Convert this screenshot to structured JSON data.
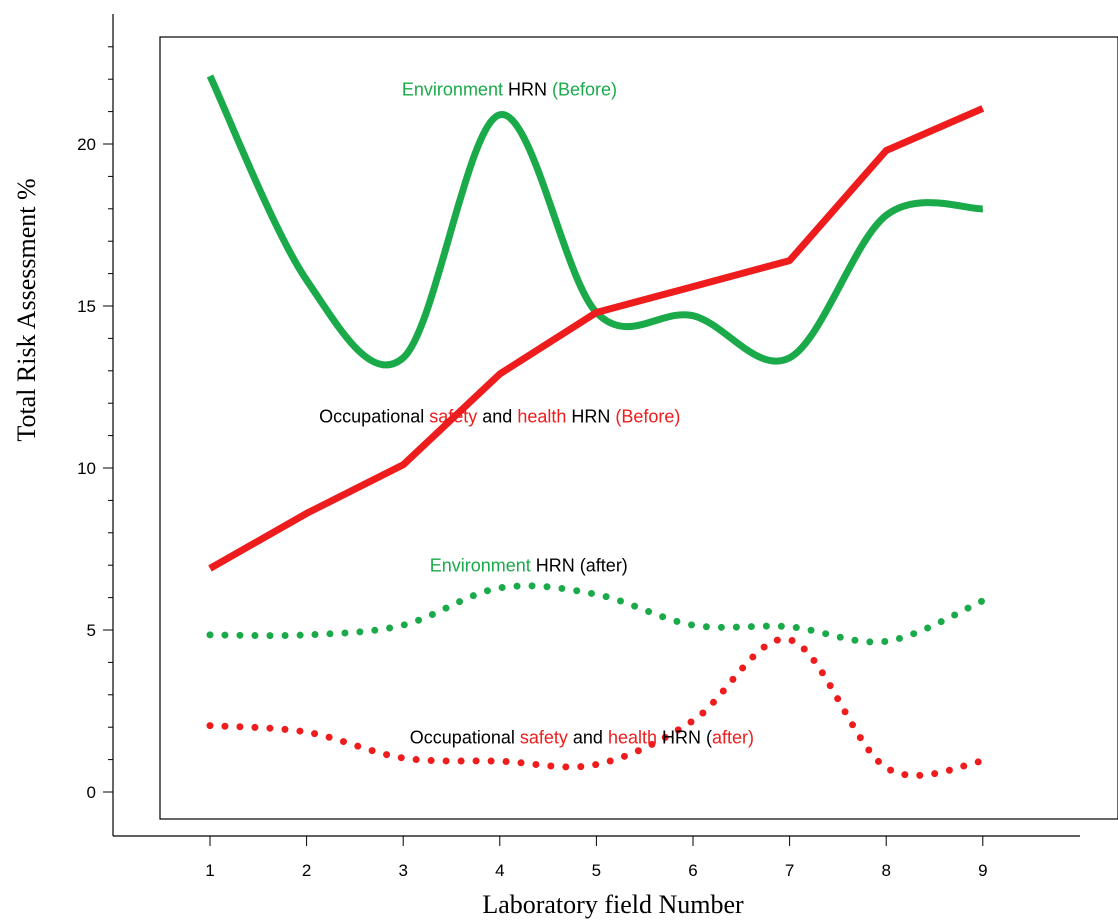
{
  "chart_data": {
    "type": "line",
    "xlabel": "Laboratory field Number",
    "ylabel": "Total Risk Assessment %",
    "x": [
      1,
      2,
      3,
      4,
      5,
      6,
      7,
      8,
      9
    ],
    "xlim": [
      0,
      10
    ],
    "ylim": [
      -1,
      24
    ],
    "yticks": [
      0,
      5,
      10,
      15,
      20
    ],
    "grid": false,
    "legend": "none",
    "series": [
      {
        "key": "env_before",
        "style": "solid",
        "color": "#1aaa4a",
        "values": [
          22.1,
          15.8,
          13.4,
          20.9,
          14.8,
          14.7,
          13.4,
          17.8,
          18.0
        ]
      },
      {
        "key": "osh_before",
        "style": "solid",
        "color": "#ee1c1c",
        "values": [
          6.9,
          8.6,
          10.1,
          12.9,
          14.8,
          15.6,
          16.4,
          19.8,
          21.1
        ]
      },
      {
        "key": "env_after",
        "style": "dotted",
        "color": "#1aaa4a",
        "values": [
          4.85,
          4.85,
          5.15,
          6.3,
          6.1,
          5.15,
          5.1,
          4.65,
          5.9
        ]
      },
      {
        "key": "osh_after",
        "style": "dotted",
        "color": "#ee1c1c",
        "values": [
          2.05,
          1.85,
          1.05,
          0.95,
          0.85,
          2.2,
          4.7,
          0.75,
          0.95
        ]
      }
    ],
    "annotations": [
      {
        "key": "env_before_label",
        "x": 4.1,
        "y": 21.5,
        "parts": [
          {
            "text": "Environment",
            "color": "#1aaa4a"
          },
          {
            "text": " HRN ",
            "color": "#000000"
          },
          {
            "text": "(Before)",
            "color": "#1aaa4a"
          }
        ]
      },
      {
        "key": "osh_before_label",
        "x": 4.0,
        "y": 11.4,
        "parts": [
          {
            "text": "Occupational ",
            "color": "#000000"
          },
          {
            "text": "safety",
            "color": "#ee1c1c"
          },
          {
            "text": " and ",
            "color": "#000000"
          },
          {
            "text": "health",
            "color": "#ee1c1c"
          },
          {
            "text": " HRN ",
            "color": "#000000"
          },
          {
            "text": "(Before)",
            "color": "#ee1c1c"
          }
        ]
      },
      {
        "key": "env_after_label",
        "x": 4.3,
        "y": 6.8,
        "parts": [
          {
            "text": "Environment",
            "color": "#1aaa4a"
          },
          {
            "text": " HRN (after)",
            "color": "#000000"
          }
        ]
      },
      {
        "key": "osh_after_label",
        "x": 4.85,
        "y": 1.5,
        "parts": [
          {
            "text": "Occupational ",
            "color": "#000000"
          },
          {
            "text": "safety",
            "color": "#ee1c1c"
          },
          {
            "text": " and ",
            "color": "#000000"
          },
          {
            "text": "health",
            "color": "#ee1c1c"
          },
          {
            "text": " HRN (",
            "color": "#000000"
          },
          {
            "text": "after)",
            "color": "#ee1c1c"
          }
        ]
      }
    ]
  }
}
